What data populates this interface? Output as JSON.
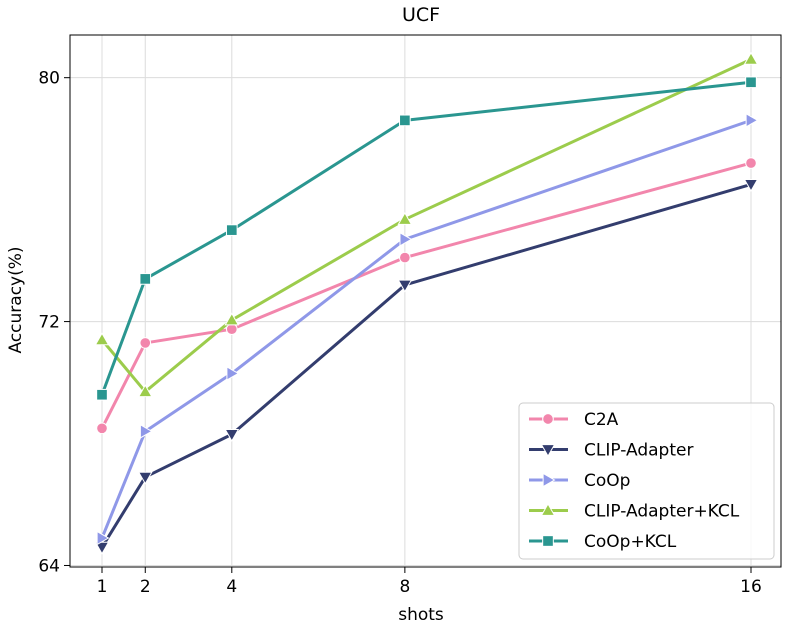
{
  "chart_data": {
    "type": "line",
    "title": "UCF",
    "xlabel": "shots",
    "ylabel": "Accuracy(%)",
    "x": [
      1,
      2,
      4,
      8,
      16
    ],
    "x_ticks": [
      "1",
      "2",
      "4",
      "8",
      "16"
    ],
    "y_ticks": [
      "64",
      "72",
      "80"
    ],
    "y_tick_values": [
      64,
      72,
      80
    ],
    "ylim": [
      63.95,
      81.4
    ],
    "grid": true,
    "legend_position": "lower-right",
    "series": [
      {
        "name": "C2A",
        "color": "#f286ac",
        "marker": "circle",
        "values": [
          68.5,
          71.3,
          71.75,
          74.1,
          77.2
        ]
      },
      {
        "name": "CLIP-Adapter",
        "color": "#333d6e",
        "marker": "triangle-down",
        "values": [
          64.6,
          66.9,
          68.3,
          73.2,
          76.5
        ]
      },
      {
        "name": "CoOp",
        "color": "#8f98e8",
        "marker": "triangle-right",
        "values": [
          64.9,
          68.4,
          70.3,
          74.7,
          78.6
        ]
      },
      {
        "name": "CLIP-Adapter+KCL",
        "color": "#9ccc4c",
        "marker": "triangle-up",
        "values": [
          71.4,
          69.7,
          72.05,
          75.35,
          80.6
        ]
      },
      {
        "name": "CoOp+KCL",
        "color": "#2a9690",
        "marker": "square",
        "values": [
          69.6,
          73.4,
          75.0,
          78.6,
          79.85
        ]
      }
    ]
  }
}
